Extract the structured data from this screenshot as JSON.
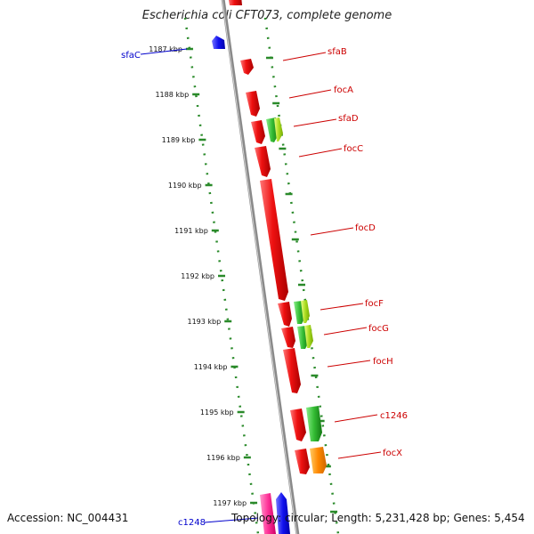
{
  "title": "Escherichia coli CFT073, complete genome",
  "footer": {
    "accession": "Accession: NC_004431",
    "summary": "Topology: circular; Length: 5,231,428 bp; Genes: 5,454"
  },
  "colors": {
    "backbone": "#8a8a8a",
    "tick": "#2a8a2a",
    "label_forward": "#cc0000",
    "label_reverse": "#0000cc",
    "gene_red": "#ee1111",
    "gene_green": "#33bb33",
    "gene_lightgreen": "#aadd22",
    "gene_blue": "#1111ee",
    "gene_orange": "#ff8800",
    "gene_pink": "#ff3399"
  },
  "scale_labels": [
    {
      "kbp": 1187,
      "text": "1187 kbp"
    },
    {
      "kbp": 1188,
      "text": "1188 kbp"
    },
    {
      "kbp": 1189,
      "text": "1189 kbp"
    },
    {
      "kbp": 1190,
      "text": "1190 kbp"
    },
    {
      "kbp": 1191,
      "text": "1191 kbp"
    },
    {
      "kbp": 1192,
      "text": "1192 kbp"
    },
    {
      "kbp": 1193,
      "text": "1193 kbp"
    },
    {
      "kbp": 1194,
      "text": "1194 kbp"
    },
    {
      "kbp": 1195,
      "text": "1195 kbp"
    },
    {
      "kbp": 1196,
      "text": "1196 kbp"
    },
    {
      "kbp": 1197,
      "text": "1197 kbp"
    }
  ],
  "gene_labels": [
    {
      "name": "sfaC",
      "strand": "reverse"
    },
    {
      "name": "sfaB",
      "strand": "forward"
    },
    {
      "name": "focA",
      "strand": "forward"
    },
    {
      "name": "sfaD",
      "strand": "forward"
    },
    {
      "name": "focC",
      "strand": "forward"
    },
    {
      "name": "focD",
      "strand": "forward"
    },
    {
      "name": "focF",
      "strand": "forward"
    },
    {
      "name": "focG",
      "strand": "forward"
    },
    {
      "name": "focH",
      "strand": "forward"
    },
    {
      "name": "c1246",
      "strand": "forward"
    },
    {
      "name": "focX",
      "strand": "forward"
    },
    {
      "name": "c1248",
      "strand": "reverse"
    }
  ]
}
